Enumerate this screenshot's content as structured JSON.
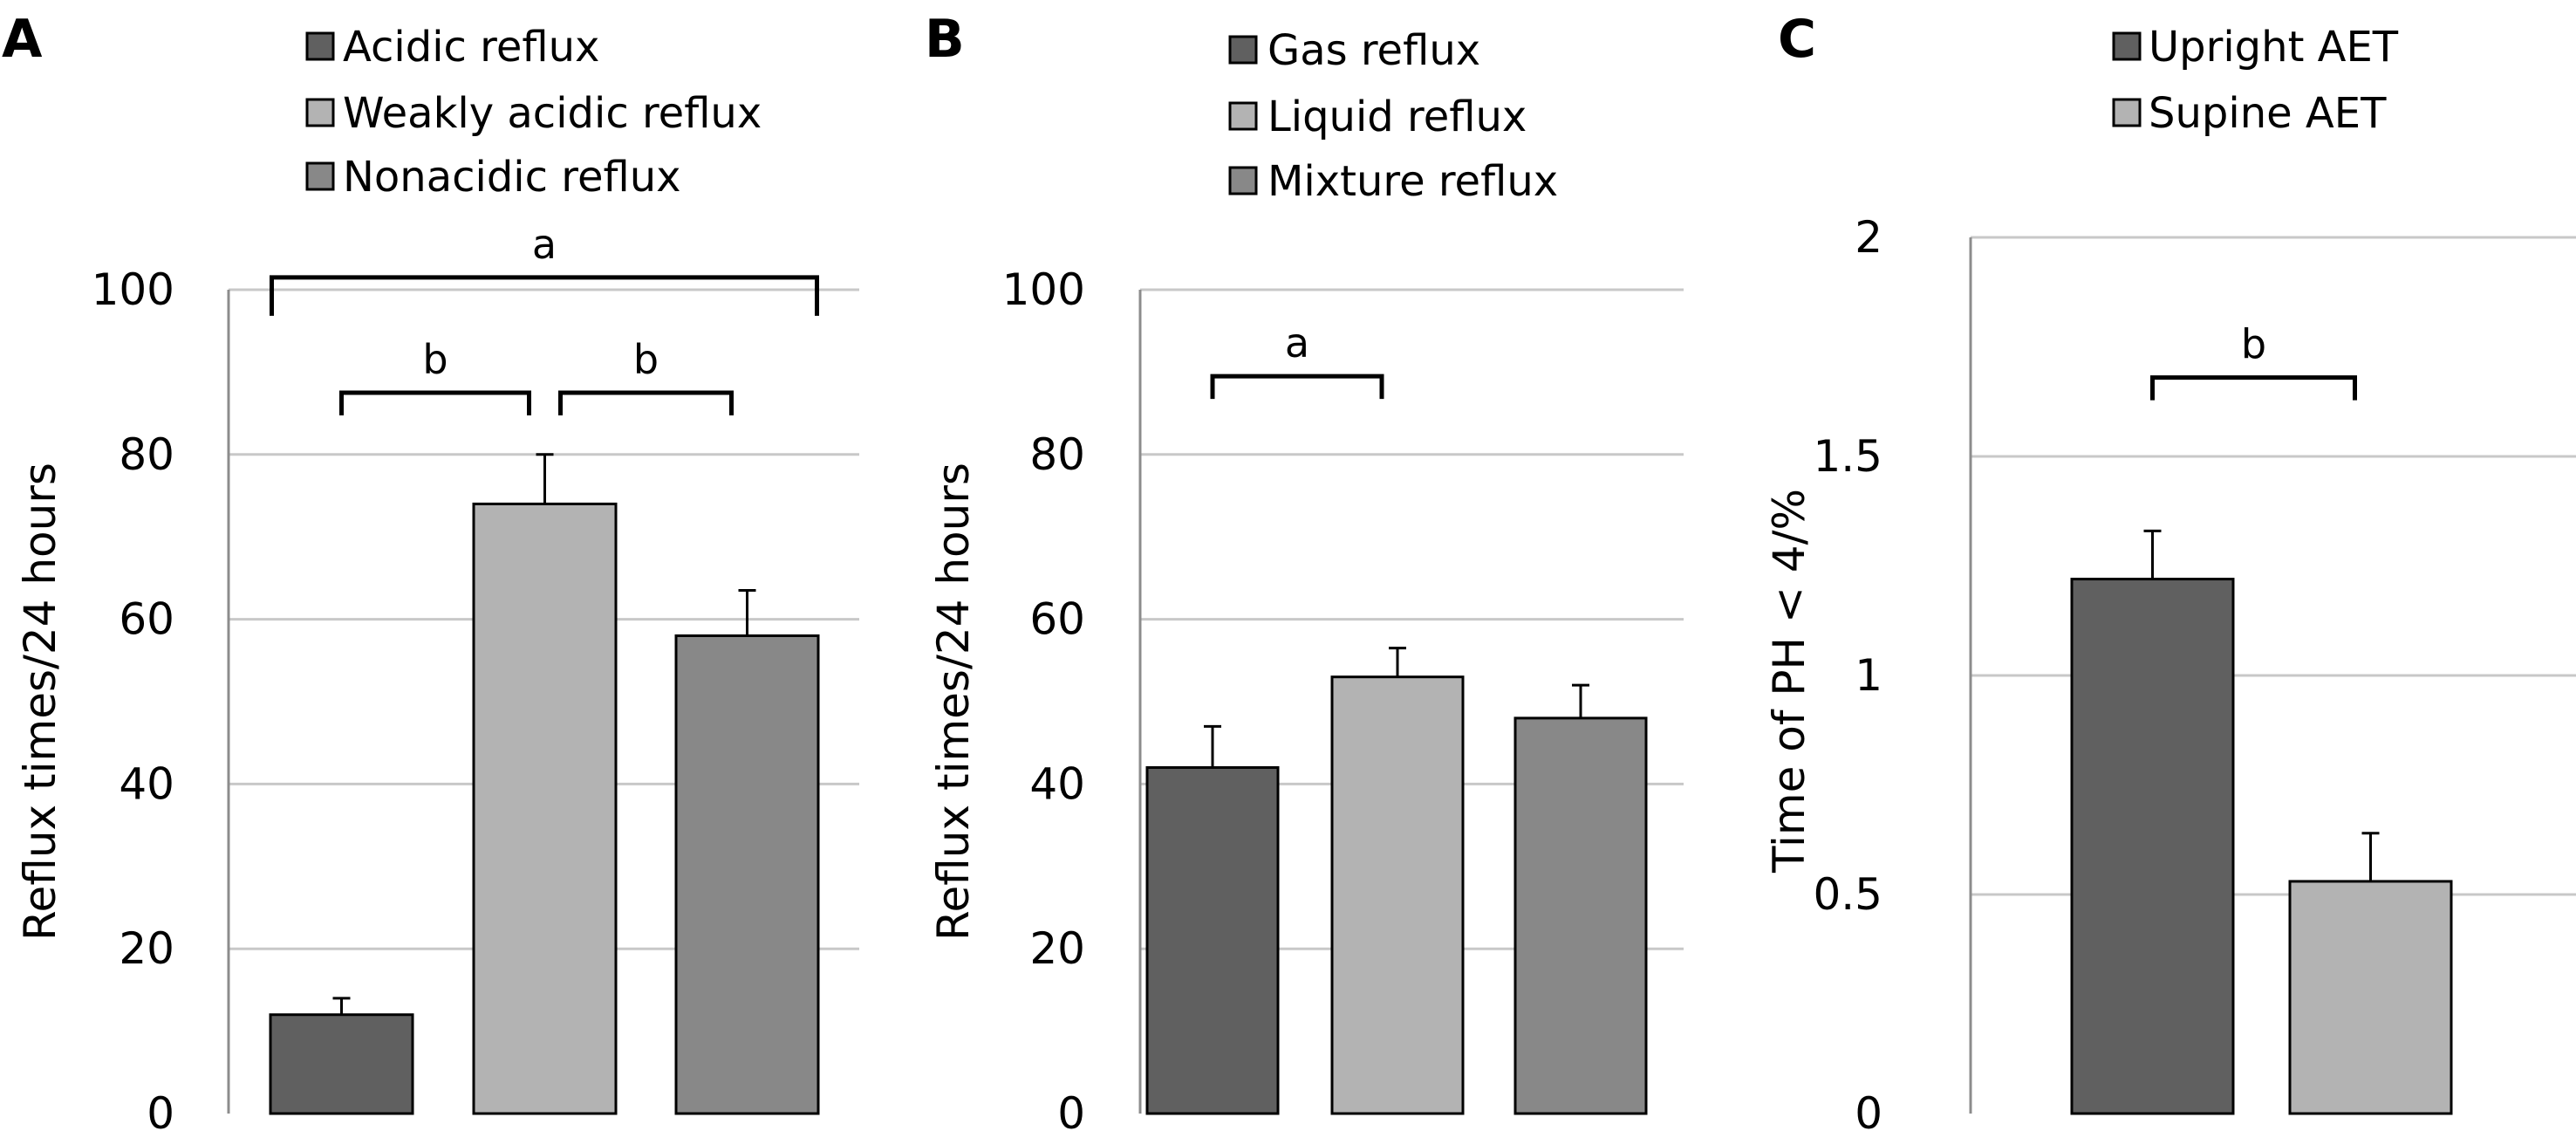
{
  "chart_data": [
    {
      "type": "bar",
      "panel_label": "A",
      "ylabel": "Reflux times/24 hours",
      "ylim": [
        0,
        100
      ],
      "yticks": [
        0,
        20,
        40,
        60,
        80,
        100
      ],
      "grid": true,
      "legend_position": "top",
      "series": [
        {
          "name": "Acidic reflux",
          "value": 12,
          "error": 2,
          "color": "#606060"
        },
        {
          "name": "Weakly acidic reflux",
          "value": 74,
          "error": 6,
          "color": "#b3b3b3"
        },
        {
          "name": "Nonacidic reflux",
          "value": 58,
          "error": 5.5,
          "color": "#888888"
        }
      ],
      "significance": [
        {
          "label": "a",
          "from": 0,
          "to": 2,
          "level": 101.5
        },
        {
          "label": "b",
          "from": 0,
          "to": 1,
          "level": 87.5
        },
        {
          "label": "b",
          "from": 1,
          "to": 2,
          "level": 87.5
        }
      ]
    },
    {
      "type": "bar",
      "panel_label": "B",
      "ylabel": "Reflux times/24 hours",
      "ylim": [
        0,
        100
      ],
      "yticks": [
        0,
        20,
        40,
        60,
        80,
        100
      ],
      "grid": true,
      "legend_position": "top",
      "series": [
        {
          "name": "Gas reflux",
          "value": 42,
          "error": 5,
          "color": "#606060"
        },
        {
          "name": "Liquid reflux",
          "value": 53,
          "error": 3.5,
          "color": "#b3b3b3"
        },
        {
          "name": "Mixture reflux",
          "value": 48,
          "error": 4,
          "color": "#888888"
        }
      ],
      "significance": [
        {
          "label": "a",
          "from": 0,
          "to": 1,
          "level": 89.5
        }
      ]
    },
    {
      "type": "bar",
      "panel_label": "C",
      "ylabel": "Time of PH < 4/%",
      "ylim": [
        0,
        2
      ],
      "yticks": [
        0,
        0.5,
        1,
        1.5,
        2
      ],
      "grid": true,
      "legend_position": "top",
      "series": [
        {
          "name": "Upright AET",
          "value": 1.22,
          "error": 0.11,
          "color": "#606060"
        },
        {
          "name": "Supine AET",
          "value": 0.53,
          "error": 0.11,
          "color": "#b3b3b3"
        }
      ],
      "significance": [
        {
          "label": "b",
          "from": 0,
          "to": 1,
          "level": 1.68
        }
      ]
    }
  ]
}
